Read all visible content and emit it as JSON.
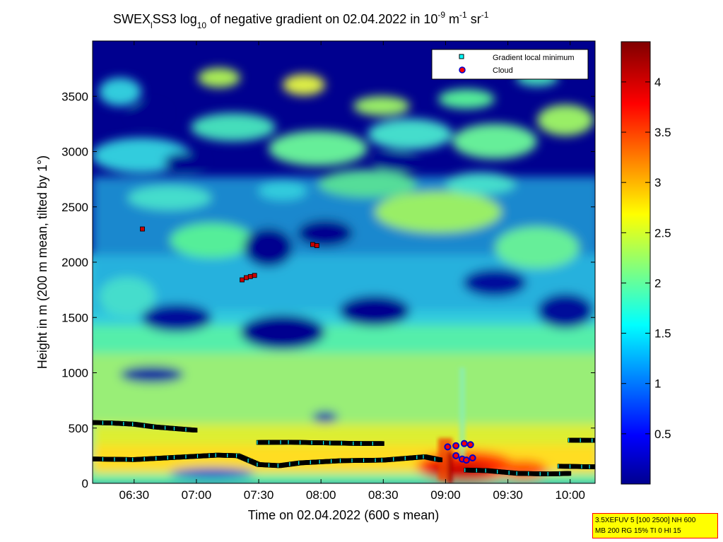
{
  "chart_data": {
    "type": "heatmap",
    "title": {
      "base": "SWEX",
      "sub1": "l",
      "part2": "SS3 log",
      "sub2": "10",
      "part3": " of negative gradient on 02.04.2022 in 10",
      "sup1": "-9",
      "part4": " m",
      "sup2": "-1",
      "part5": " sr",
      "sup3": "-1"
    },
    "xlabel": "Time on 02.04.2022 (600 s mean)",
    "ylabel": "Height in m (200 m mean, tilted by 1°)",
    "xlim": [
      "06:10",
      "10:12"
    ],
    "ylim": [
      0,
      4000
    ],
    "x_ticks": [
      "06:30",
      "07:00",
      "07:30",
      "08:00",
      "08:30",
      "09:00",
      "09:30",
      "10:00"
    ],
    "x_tick_minutes": [
      390,
      420,
      450,
      480,
      510,
      540,
      570,
      600
    ],
    "y_ticks": [
      0,
      500,
      1000,
      1500,
      2000,
      2500,
      3000,
      3500
    ],
    "colorbar": {
      "range": [
        0,
        4.4
      ],
      "ticks": [
        0.5,
        1,
        1.5,
        2,
        2.5,
        3,
        3.5,
        4
      ],
      "colormap": "jet"
    },
    "legend": {
      "position": "top-right",
      "entries": [
        {
          "label": "Gradient local minimum",
          "marker": "square",
          "color": "#00ffff"
        },
        {
          "label": "Cloud",
          "marker": "circle",
          "color": "#ff0000",
          "edge": "#0000cc"
        }
      ]
    },
    "gradient_minimum_layers": [
      {
        "points": [
          [
            370,
            550
          ],
          [
            380,
            545
          ],
          [
            390,
            535
          ],
          [
            400,
            510
          ],
          [
            410,
            495
          ],
          [
            420,
            480
          ]
        ]
      },
      {
        "points": [
          [
            370,
            220
          ],
          [
            390,
            215
          ],
          [
            410,
            235
          ],
          [
            430,
            255
          ],
          [
            440,
            250
          ],
          [
            450,
            170
          ],
          [
            460,
            160
          ],
          [
            470,
            185
          ],
          [
            480,
            195
          ],
          [
            490,
            205
          ],
          [
            510,
            210
          ],
          [
            530,
            240
          ],
          [
            538,
            210
          ]
        ]
      },
      {
        "points": [
          [
            450,
            370
          ],
          [
            465,
            372
          ],
          [
            485,
            365
          ],
          [
            500,
            360
          ],
          [
            510,
            360
          ]
        ]
      },
      {
        "points": [
          [
            550,
            120
          ],
          [
            560,
            115
          ],
          [
            575,
            90
          ],
          [
            590,
            85
          ],
          [
            600,
            90
          ]
        ]
      },
      {
        "points": [
          [
            600,
            390
          ],
          [
            615,
            388
          ],
          [
            625,
            385
          ]
        ]
      },
      {
        "points": [
          [
            595,
            155
          ],
          [
            610,
            150
          ],
          [
            625,
            150
          ]
        ]
      }
    ],
    "cloud_points": [
      [
        394,
        2300
      ],
      [
        442,
        1840
      ],
      [
        444,
        1860
      ],
      [
        446,
        1870
      ],
      [
        448,
        1880
      ],
      [
        476,
        2160
      ],
      [
        478,
        2150
      ]
    ],
    "cloud_base_points": [
      [
        541,
        330
      ],
      [
        545,
        340
      ],
      [
        549,
        360
      ],
      [
        552,
        350
      ],
      [
        545,
        250
      ],
      [
        548,
        220
      ],
      [
        550,
        210
      ],
      [
        553,
        230
      ]
    ]
  },
  "info_box": {
    "line1": "3.5XEFUV 5 [100 2500] NH 600",
    "line2": "MB 200 RG 15% TI 0 HI 15"
  },
  "colors": {
    "background_low": "#00008f",
    "field": "#33ccdd",
    "high": "#ffee44",
    "cloud": "#cc0000",
    "layer": "#000000"
  }
}
